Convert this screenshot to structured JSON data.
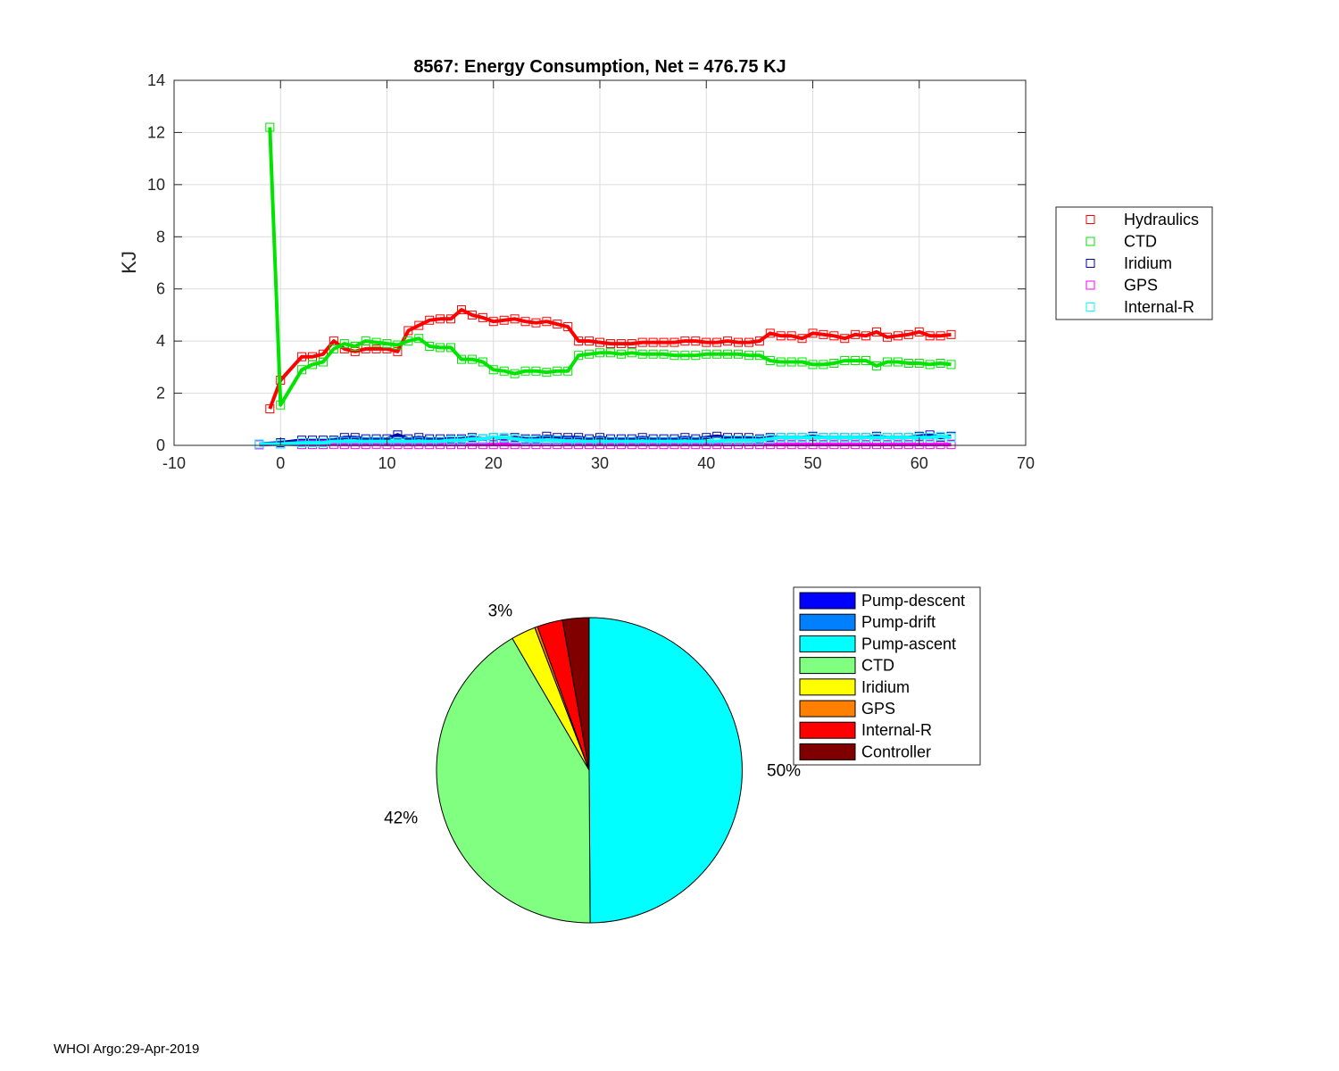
{
  "footer": "WHOI Argo:29-Apr-2019",
  "chart_data": [
    {
      "type": "line",
      "title": "8567: Energy Consumption,  Net = 476.75 KJ",
      "xlabel": "",
      "ylabel": "KJ",
      "xlim": [
        -10,
        70
      ],
      "ylim": [
        0,
        14
      ],
      "xticks": [
        -10,
        0,
        10,
        20,
        30,
        40,
        50,
        60,
        70
      ],
      "yticks": [
        0,
        2,
        4,
        6,
        8,
        10,
        12,
        14
      ],
      "grid": true,
      "legend_position": "outside-right",
      "markers": "square",
      "series": [
        {
          "name": "Hydraulics",
          "color": "#ff0000",
          "x": [
            -1,
            0,
            2,
            3,
            4,
            5,
            6,
            7,
            8,
            9,
            10,
            11,
            12,
            13,
            14,
            15,
            16,
            17,
            18,
            19,
            20,
            21,
            22,
            23,
            24,
            25,
            26,
            27,
            28,
            29,
            30,
            31,
            32,
            33,
            34,
            35,
            36,
            37,
            38,
            39,
            40,
            41,
            42,
            43,
            44,
            45,
            46,
            47,
            48,
            49,
            50,
            51,
            52,
            53,
            54,
            55,
            56,
            57,
            58,
            59,
            60,
            61,
            62,
            63
          ],
          "y": [
            1.4,
            2.5,
            3.4,
            3.4,
            3.5,
            4.0,
            3.7,
            3.6,
            3.7,
            3.7,
            3.7,
            3.6,
            4.4,
            4.6,
            4.8,
            4.85,
            4.85,
            5.2,
            5.0,
            4.9,
            4.75,
            4.8,
            4.85,
            4.75,
            4.7,
            4.75,
            4.65,
            4.55,
            4.0,
            4.0,
            3.95,
            3.9,
            3.9,
            3.9,
            3.95,
            3.95,
            3.95,
            3.95,
            4.0,
            4.0,
            3.95,
            3.95,
            4.0,
            3.95,
            3.95,
            4.0,
            4.3,
            4.2,
            4.2,
            4.1,
            4.3,
            4.25,
            4.2,
            4.1,
            4.25,
            4.2,
            4.35,
            4.15,
            4.2,
            4.25,
            4.35,
            4.2,
            4.2,
            4.25
          ]
        },
        {
          "name": "CTD",
          "color": "#00e400",
          "x": [
            -1,
            0,
            2,
            3,
            4,
            5,
            6,
            7,
            8,
            9,
            10,
            11,
            12,
            13,
            14,
            15,
            16,
            17,
            18,
            19,
            20,
            21,
            22,
            23,
            24,
            25,
            26,
            27,
            28,
            29,
            30,
            31,
            32,
            33,
            34,
            35,
            36,
            37,
            38,
            39,
            40,
            41,
            42,
            43,
            44,
            45,
            46,
            47,
            48,
            49,
            50,
            51,
            52,
            53,
            54,
            55,
            56,
            57,
            58,
            59,
            60,
            61,
            62,
            63
          ],
          "y": [
            12.2,
            1.55,
            2.9,
            3.1,
            3.2,
            3.7,
            3.9,
            3.8,
            4.0,
            3.95,
            3.9,
            3.85,
            4.0,
            4.1,
            3.8,
            3.75,
            3.75,
            3.3,
            3.3,
            3.2,
            2.9,
            2.85,
            2.75,
            2.85,
            2.85,
            2.8,
            2.85,
            2.85,
            3.45,
            3.5,
            3.55,
            3.55,
            3.5,
            3.55,
            3.5,
            3.5,
            3.5,
            3.45,
            3.45,
            3.45,
            3.5,
            3.5,
            3.5,
            3.5,
            3.45,
            3.45,
            3.25,
            3.2,
            3.2,
            3.2,
            3.1,
            3.1,
            3.15,
            3.25,
            3.25,
            3.25,
            3.05,
            3.2,
            3.2,
            3.15,
            3.15,
            3.1,
            3.15,
            3.1
          ]
        },
        {
          "name": "Iridium",
          "color": "#0000aa",
          "x": [
            -2,
            0,
            2,
            3,
            4,
            5,
            6,
            7,
            8,
            9,
            10,
            11,
            12,
            13,
            14,
            15,
            16,
            17,
            18,
            19,
            20,
            21,
            22,
            23,
            24,
            25,
            26,
            27,
            28,
            29,
            30,
            31,
            32,
            33,
            34,
            35,
            36,
            37,
            38,
            39,
            40,
            41,
            42,
            43,
            44,
            45,
            46,
            47,
            48,
            49,
            50,
            51,
            52,
            53,
            54,
            55,
            56,
            57,
            58,
            59,
            60,
            61,
            62,
            63
          ],
          "y": [
            0.05,
            0.1,
            0.2,
            0.2,
            0.2,
            0.2,
            0.3,
            0.3,
            0.25,
            0.25,
            0.25,
            0.4,
            0.25,
            0.3,
            0.25,
            0.25,
            0.25,
            0.25,
            0.3,
            0.25,
            0.3,
            0.25,
            0.3,
            0.25,
            0.25,
            0.35,
            0.3,
            0.3,
            0.3,
            0.25,
            0.3,
            0.25,
            0.25,
            0.25,
            0.3,
            0.25,
            0.25,
            0.25,
            0.3,
            0.25,
            0.3,
            0.35,
            0.3,
            0.3,
            0.3,
            0.25,
            0.3,
            0.3,
            0.3,
            0.3,
            0.35,
            0.3,
            0.3,
            0.3,
            0.3,
            0.3,
            0.35,
            0.3,
            0.3,
            0.3,
            0.35,
            0.4,
            0.3,
            0.35
          ]
        },
        {
          "name": "GPS",
          "color": "#ff00ff",
          "x": [
            -2,
            0,
            2,
            3,
            4,
            5,
            6,
            7,
            8,
            9,
            10,
            11,
            12,
            13,
            14,
            15,
            16,
            17,
            18,
            19,
            20,
            21,
            22,
            23,
            24,
            25,
            26,
            27,
            28,
            29,
            30,
            31,
            32,
            33,
            34,
            35,
            36,
            37,
            38,
            39,
            40,
            41,
            42,
            43,
            44,
            45,
            46,
            47,
            48,
            49,
            50,
            51,
            52,
            53,
            54,
            55,
            56,
            57,
            58,
            59,
            60,
            61,
            62,
            63
          ],
          "y": [
            0.02,
            0.05,
            0.03,
            0.03,
            0.03,
            0.04,
            0.03,
            0.03,
            0.03,
            0.04,
            0.03,
            0.03,
            0.03,
            0.03,
            0.03,
            0.03,
            0.03,
            0.03,
            0.03,
            0.03,
            0.03,
            0.03,
            0.03,
            0.03,
            0.03,
            0.03,
            0.03,
            0.03,
            0.03,
            0.03,
            0.03,
            0.03,
            0.03,
            0.03,
            0.03,
            0.03,
            0.03,
            0.03,
            0.03,
            0.03,
            0.03,
            0.03,
            0.03,
            0.03,
            0.03,
            0.03,
            0.03,
            0.03,
            0.03,
            0.03,
            0.03,
            0.03,
            0.03,
            0.03,
            0.03,
            0.03,
            0.03,
            0.03,
            0.03,
            0.03,
            0.03,
            0.03,
            0.03,
            0.03
          ]
        },
        {
          "name": "Internal-R",
          "color": "#00ffff",
          "x": [
            -2,
            0,
            2,
            3,
            4,
            5,
            6,
            7,
            8,
            9,
            10,
            11,
            12,
            13,
            14,
            15,
            16,
            17,
            18,
            19,
            20,
            21,
            22,
            23,
            24,
            25,
            26,
            27,
            28,
            29,
            30,
            31,
            32,
            33,
            34,
            35,
            36,
            37,
            38,
            39,
            40,
            41,
            42,
            43,
            44,
            45,
            46,
            47,
            48,
            49,
            50,
            51,
            52,
            53,
            54,
            55,
            56,
            57,
            58,
            59,
            60,
            61,
            62,
            63
          ],
          "y": [
            0.05,
            0.05,
            0.1,
            0.1,
            0.1,
            0.15,
            0.15,
            0.15,
            0.15,
            0.15,
            0.15,
            0.15,
            0.15,
            0.15,
            0.15,
            0.15,
            0.2,
            0.2,
            0.25,
            0.25,
            0.3,
            0.3,
            0.25,
            0.2,
            0.2,
            0.2,
            0.2,
            0.15,
            0.15,
            0.15,
            0.15,
            0.15,
            0.15,
            0.15,
            0.15,
            0.15,
            0.15,
            0.15,
            0.15,
            0.15,
            0.15,
            0.15,
            0.2,
            0.2,
            0.2,
            0.2,
            0.25,
            0.3,
            0.3,
            0.3,
            0.3,
            0.3,
            0.3,
            0.3,
            0.3,
            0.3,
            0.3,
            0.3,
            0.3,
            0.3,
            0.3,
            0.3,
            0.35,
            0.3
          ]
        }
      ]
    },
    {
      "type": "pie",
      "legend_position": "right",
      "slices": [
        {
          "name": "Pump-descent",
          "value": 0.0,
          "color": "#0000ff"
        },
        {
          "name": "Pump-drift",
          "value": 0.0,
          "color": "#0080ff"
        },
        {
          "name": "Pump-ascent",
          "value": 49.9,
          "color": "#00ffff"
        },
        {
          "name": "CTD",
          "value": 41.7,
          "color": "#80ff80"
        },
        {
          "name": "Iridium",
          "value": 2.6,
          "color": "#ffff00"
        },
        {
          "name": "GPS",
          "value": 0.3,
          "color": "#ff8000"
        },
        {
          "name": "Internal-R",
          "value": 2.7,
          "color": "#ff0000"
        },
        {
          "name": "Controller",
          "value": 2.8,
          "color": "#800000"
        }
      ],
      "labels": [
        {
          "text": "3%",
          "slice": "Iridium"
        },
        {
          "text": "50%",
          "slice": "Pump-ascent"
        },
        {
          "text": "42%",
          "slice": "CTD"
        }
      ]
    }
  ]
}
